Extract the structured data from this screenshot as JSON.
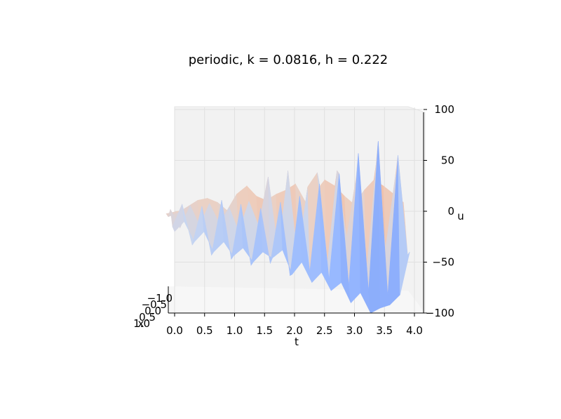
{
  "chart_data": {
    "type": "surface",
    "title": "periodic, k = 0.0816, h = 0.222",
    "xlabel": "t",
    "ylabel": "x",
    "zlabel": "u",
    "t_ticks": [
      "0.0",
      "0.5",
      "1.0",
      "1.5",
      "2.0",
      "2.5",
      "3.0",
      "3.5",
      "4.0"
    ],
    "x_ticks": [
      "−1.0",
      "−0.5",
      "0.0",
      "0.5",
      "1.0"
    ],
    "u_ticks": [
      "100",
      "50",
      "0",
      "−50",
      "−100"
    ],
    "t_range": [
      0,
      4
    ],
    "x_range": [
      -1,
      1
    ],
    "u_range": [
      -100,
      100
    ],
    "grid": true,
    "colormap": "coolwarm",
    "series": [
      {
        "x": 1.0,
        "t": [
          0.0,
          0.16,
          0.33,
          0.49,
          0.65,
          0.82,
          0.98,
          1.14,
          1.31,
          1.47,
          1.63,
          1.8,
          1.96,
          2.12,
          2.29,
          2.45,
          2.61,
          2.78,
          2.94,
          3.1,
          3.27,
          3.43,
          3.59,
          3.76,
          3.92
        ],
        "u": [
          10,
          12,
          14,
          15,
          14,
          11,
          8,
          22,
          28,
          18,
          12,
          8,
          5,
          10,
          20,
          24,
          14,
          10,
          6,
          4,
          8,
          14,
          20,
          16,
          10
        ]
      },
      {
        "x": 0.5,
        "t": [
          0.0,
          0.16,
          0.33,
          0.49,
          0.65,
          0.82,
          0.98,
          1.14,
          1.31,
          1.47,
          1.63,
          1.8,
          1.96,
          2.12,
          2.29,
          2.45,
          2.61,
          2.78,
          2.94,
          3.1,
          3.27,
          3.43,
          3.59,
          3.76,
          3.92
        ],
        "u": [
          4,
          8,
          14,
          20,
          22,
          18,
          10,
          26,
          34,
          24,
          20,
          26,
          30,
          36,
          18,
          28,
          40,
          34,
          24,
          16,
          30,
          40,
          34,
          26,
          18
        ]
      },
      {
        "x": 0.0,
        "t": [
          0.0,
          0.16,
          0.33,
          0.49,
          0.65,
          0.82,
          0.98,
          1.14,
          1.31,
          1.47,
          1.63,
          1.8,
          1.96,
          2.12,
          2.29,
          2.45,
          2.61,
          2.78,
          2.94,
          3.1,
          3.27,
          3.43,
          3.59,
          3.76,
          3.92
        ],
        "u": [
          8,
          -10,
          12,
          -8,
          14,
          -6,
          10,
          -14,
          16,
          -8,
          40,
          -34,
          46,
          -40,
          30,
          44,
          -50,
          46,
          -20,
          40,
          -55,
          52,
          -30,
          44,
          -10
        ]
      },
      {
        "x": -0.5,
        "t": [
          0.0,
          0.16,
          0.33,
          0.49,
          0.65,
          0.82,
          0.98,
          1.14,
          1.31,
          1.47,
          1.63,
          1.8,
          1.96,
          2.12,
          2.29,
          2.45,
          2.61,
          2.78,
          2.94,
          3.1,
          3.27,
          3.43,
          3.59,
          3.76,
          3.92
        ],
        "u": [
          -12,
          10,
          -30,
          8,
          -40,
          14,
          -44,
          10,
          -50,
          6,
          -48,
          12,
          -60,
          18,
          -56,
          30,
          -64,
          40,
          -70,
          60,
          -76,
          72,
          -80,
          58,
          -40
        ]
      },
      {
        "x": -1.0,
        "t": [
          0.0,
          0.16,
          0.33,
          0.49,
          0.65,
          0.82,
          0.98,
          1.14,
          1.31,
          1.47,
          1.63,
          1.8,
          1.96,
          2.12,
          2.29,
          2.45,
          2.61,
          2.78,
          2.94,
          3.1,
          3.27,
          3.43,
          3.59,
          3.76,
          3.92
        ],
        "u": [
          -20,
          -10,
          -30,
          -20,
          -40,
          -30,
          -44,
          -36,
          -50,
          -40,
          -46,
          -38,
          -62,
          -50,
          -70,
          -60,
          -78,
          -70,
          -90,
          -80,
          -100,
          -95,
          -92,
          -82,
          -40
        ]
      }
    ]
  }
}
